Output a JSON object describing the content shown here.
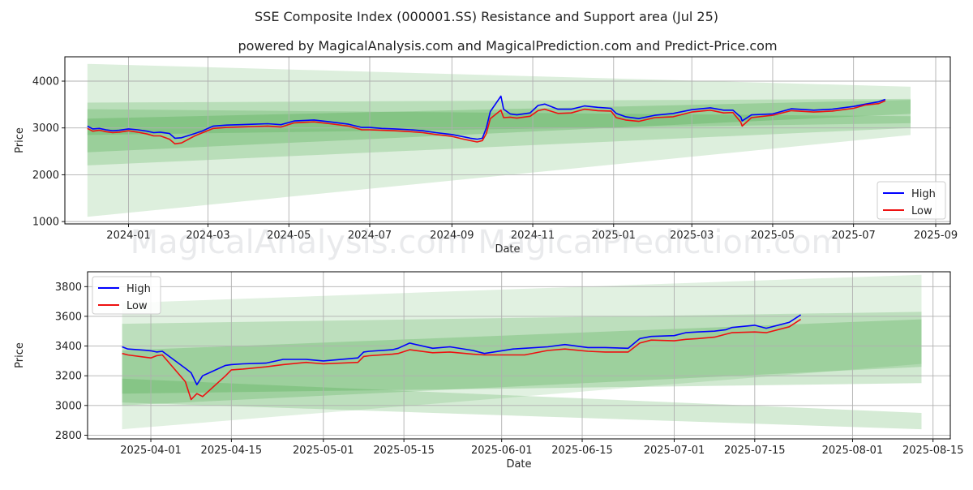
{
  "page": {
    "title": "SSE Composite Index (000001.SS) Resistance and Support area (Jul 25)",
    "subtitle": "powered by MagicalAnalysis.com and MagicalPrediction.com and Predict-Price.com",
    "watermark": "MagicalAnalysis.com    MagicalPrediction.com"
  },
  "colors": {
    "high": "#0000ff",
    "low": "#ee1111",
    "band": "#2e9b2e",
    "grid": "#b0b0b0"
  },
  "chart_data": [
    {
      "type": "line",
      "xlabel": "Date",
      "ylabel": "Price",
      "x_axis": "date",
      "xlim": [
        "2023-11-14",
        "2025-09-12"
      ],
      "ylim": [
        950,
        4520
      ],
      "xticks": [
        "2024-01",
        "2024-03",
        "2024-05",
        "2024-07",
        "2024-09",
        "2024-11",
        "2025-01",
        "2025-03",
        "2025-05",
        "2025-07",
        "2025-09"
      ],
      "xtick_dates": [
        "2024-01-01",
        "2024-03-01",
        "2024-05-01",
        "2024-07-01",
        "2024-09-01",
        "2024-11-01",
        "2025-01-01",
        "2025-03-01",
        "2025-05-01",
        "2025-07-01",
        "2025-09-01"
      ],
      "yticks": [
        1000,
        2000,
        3000,
        4000
      ],
      "grid": true,
      "legend": "lower right",
      "series": [
        {
          "name": "High",
          "x": [
            "2023-12-01",
            "2023-12-05",
            "2023-12-10",
            "2023-12-15",
            "2023-12-20",
            "2023-12-25",
            "2024-01-01",
            "2024-01-08",
            "2024-01-15",
            "2024-01-20",
            "2024-01-25",
            "2024-02-01",
            "2024-02-05",
            "2024-02-10",
            "2024-02-20",
            "2024-02-26",
            "2024-03-05",
            "2024-03-15",
            "2024-03-25",
            "2024-04-05",
            "2024-04-15",
            "2024-04-25",
            "2024-05-05",
            "2024-05-20",
            "2024-06-01",
            "2024-06-15",
            "2024-06-25",
            "2024-07-01",
            "2024-07-10",
            "2024-07-20",
            "2024-08-01",
            "2024-08-10",
            "2024-08-20",
            "2024-09-01",
            "2024-09-10",
            "2024-09-15",
            "2024-09-20",
            "2024-09-24",
            "2024-09-27",
            "2024-09-30",
            "2024-10-08",
            "2024-10-10",
            "2024-10-15",
            "2024-10-20",
            "2024-10-30",
            "2024-11-05",
            "2024-11-10",
            "2024-11-20",
            "2024-11-30",
            "2024-12-10",
            "2024-12-20",
            "2024-12-30",
            "2025-01-03",
            "2025-01-10",
            "2025-01-20",
            "2025-02-01",
            "2025-02-15",
            "2025-03-01",
            "2025-03-15",
            "2025-03-25",
            "2025-04-01",
            "2025-04-07",
            "2025-04-08",
            "2025-04-15",
            "2025-05-01",
            "2025-05-15",
            "2025-06-01",
            "2025-06-15",
            "2025-07-01",
            "2025-07-10",
            "2025-07-20",
            "2025-07-25"
          ],
          "y": [
            3040,
            2980,
            2990,
            2960,
            2940,
            2950,
            2980,
            2960,
            2930,
            2900,
            2910,
            2880,
            2780,
            2790,
            2880,
            2940,
            3040,
            3060,
            3070,
            3080,
            3090,
            3070,
            3150,
            3170,
            3130,
            3080,
            3010,
            3010,
            2990,
            2980,
            2960,
            2940,
            2900,
            2860,
            2810,
            2780,
            2760,
            2780,
            3000,
            3350,
            3680,
            3400,
            3300,
            3280,
            3320,
            3480,
            3510,
            3400,
            3400,
            3470,
            3440,
            3420,
            3310,
            3240,
            3200,
            3270,
            3310,
            3390,
            3430,
            3380,
            3380,
            3230,
            3150,
            3280,
            3300,
            3410,
            3380,
            3400,
            3460,
            3510,
            3560,
            3610
          ]
        },
        {
          "name": "Low",
          "x": [
            "2023-12-01",
            "2023-12-05",
            "2023-12-10",
            "2023-12-15",
            "2023-12-20",
            "2023-12-25",
            "2024-01-01",
            "2024-01-08",
            "2024-01-15",
            "2024-01-20",
            "2024-01-25",
            "2024-02-01",
            "2024-02-05",
            "2024-02-10",
            "2024-02-20",
            "2024-02-26",
            "2024-03-05",
            "2024-03-15",
            "2024-03-25",
            "2024-04-05",
            "2024-04-15",
            "2024-04-25",
            "2024-05-05",
            "2024-05-20",
            "2024-06-01",
            "2024-06-15",
            "2024-06-25",
            "2024-07-01",
            "2024-07-10",
            "2024-07-20",
            "2024-08-01",
            "2024-08-10",
            "2024-08-20",
            "2024-09-01",
            "2024-09-10",
            "2024-09-15",
            "2024-09-20",
            "2024-09-24",
            "2024-09-27",
            "2024-09-30",
            "2024-10-08",
            "2024-10-10",
            "2024-10-15",
            "2024-10-20",
            "2024-10-30",
            "2024-11-05",
            "2024-11-10",
            "2024-11-20",
            "2024-11-30",
            "2024-12-10",
            "2024-12-20",
            "2024-12-30",
            "2025-01-03",
            "2025-01-10",
            "2025-01-20",
            "2025-02-01",
            "2025-02-15",
            "2025-03-01",
            "2025-03-15",
            "2025-03-25",
            "2025-04-01",
            "2025-04-07",
            "2025-04-08",
            "2025-04-15",
            "2025-05-01",
            "2025-05-15",
            "2025-06-01",
            "2025-06-15",
            "2025-07-01",
            "2025-07-10",
            "2025-07-20",
            "2025-07-25"
          ],
          "y": [
            2990,
            2930,
            2950,
            2920,
            2900,
            2910,
            2940,
            2910,
            2870,
            2830,
            2830,
            2760,
            2660,
            2680,
            2830,
            2900,
            2990,
            3010,
            3020,
            3030,
            3040,
            3020,
            3110,
            3130,
            3090,
            3040,
            2960,
            2960,
            2950,
            2940,
            2920,
            2900,
            2860,
            2820,
            2760,
            2730,
            2700,
            2730,
            2880,
            3200,
            3380,
            3220,
            3230,
            3210,
            3250,
            3370,
            3400,
            3310,
            3320,
            3400,
            3370,
            3360,
            3220,
            3170,
            3140,
            3220,
            3240,
            3340,
            3380,
            3320,
            3330,
            3120,
            3040,
            3220,
            3270,
            3370,
            3340,
            3360,
            3420,
            3490,
            3520,
            3580
          ]
        }
      ]
    },
    {
      "type": "line",
      "xlabel": "Date",
      "ylabel": "Price",
      "x_axis": "date",
      "xlim": [
        "2025-03-21",
        "2025-08-18"
      ],
      "ylim": [
        2775,
        3900
      ],
      "xticks": [
        "2025-04-01",
        "2025-04-15",
        "2025-05-01",
        "2025-05-15",
        "2025-06-01",
        "2025-06-15",
        "2025-07-01",
        "2025-07-15",
        "2025-08-01",
        "2025-08-15"
      ],
      "yticks": [
        2800,
        3000,
        3200,
        3400,
        3600,
        3800
      ],
      "grid": true,
      "legend": "upper left",
      "series": [
        {
          "name": "High",
          "x": [
            "2025-03-27",
            "2025-03-28",
            "2025-03-31",
            "2025-04-01",
            "2025-04-02",
            "2025-04-03",
            "2025-04-07",
            "2025-04-08",
            "2025-04-09",
            "2025-04-10",
            "2025-04-14",
            "2025-04-15",
            "2025-04-17",
            "2025-04-21",
            "2025-04-24",
            "2025-04-28",
            "2025-05-01",
            "2025-05-07",
            "2025-05-08",
            "2025-05-09",
            "2025-05-13",
            "2025-05-14",
            "2025-05-16",
            "2025-05-20",
            "2025-05-23",
            "2025-05-27",
            "2025-05-29",
            "2025-06-03",
            "2025-06-05",
            "2025-06-09",
            "2025-06-12",
            "2025-06-16",
            "2025-06-19",
            "2025-06-23",
            "2025-06-25",
            "2025-06-27",
            "2025-07-01",
            "2025-07-03",
            "2025-07-05",
            "2025-07-08",
            "2025-07-10",
            "2025-07-11",
            "2025-07-15",
            "2025-07-17",
            "2025-07-21",
            "2025-07-23"
          ],
          "y": [
            3395,
            3380,
            3372,
            3368,
            3360,
            3365,
            3250,
            3220,
            3140,
            3200,
            3270,
            3275,
            3280,
            3285,
            3310,
            3310,
            3300,
            3320,
            3360,
            3365,
            3375,
            3385,
            3420,
            3385,
            3395,
            3370,
            3350,
            3380,
            3385,
            3395,
            3410,
            3390,
            3390,
            3385,
            3450,
            3465,
            3470,
            3490,
            3495,
            3500,
            3510,
            3525,
            3540,
            3520,
            3560,
            3610
          ]
        },
        {
          "name": "Low",
          "x": [
            "2025-03-27",
            "2025-03-28",
            "2025-03-31",
            "2025-04-01",
            "2025-04-02",
            "2025-04-03",
            "2025-04-07",
            "2025-04-08",
            "2025-04-09",
            "2025-04-10",
            "2025-04-14",
            "2025-04-15",
            "2025-04-17",
            "2025-04-21",
            "2025-04-24",
            "2025-04-28",
            "2025-05-01",
            "2025-05-07",
            "2025-05-08",
            "2025-05-09",
            "2025-05-13",
            "2025-05-14",
            "2025-05-16",
            "2025-05-20",
            "2025-05-23",
            "2025-05-27",
            "2025-05-29",
            "2025-06-03",
            "2025-06-05",
            "2025-06-09",
            "2025-06-12",
            "2025-06-16",
            "2025-06-19",
            "2025-06-23",
            "2025-06-25",
            "2025-06-27",
            "2025-07-01",
            "2025-07-03",
            "2025-07-05",
            "2025-07-08",
            "2025-07-10",
            "2025-07-11",
            "2025-07-15",
            "2025-07-17",
            "2025-07-21",
            "2025-07-23"
          ],
          "y": [
            3350,
            3340,
            3325,
            3320,
            3335,
            3340,
            3160,
            3040,
            3080,
            3060,
            3200,
            3240,
            3245,
            3260,
            3275,
            3290,
            3280,
            3290,
            3330,
            3335,
            3345,
            3350,
            3375,
            3355,
            3360,
            3345,
            3340,
            3340,
            3340,
            3370,
            3380,
            3365,
            3360,
            3360,
            3420,
            3440,
            3435,
            3445,
            3450,
            3460,
            3480,
            3490,
            3495,
            3490,
            3530,
            3580
          ]
        }
      ]
    }
  ]
}
